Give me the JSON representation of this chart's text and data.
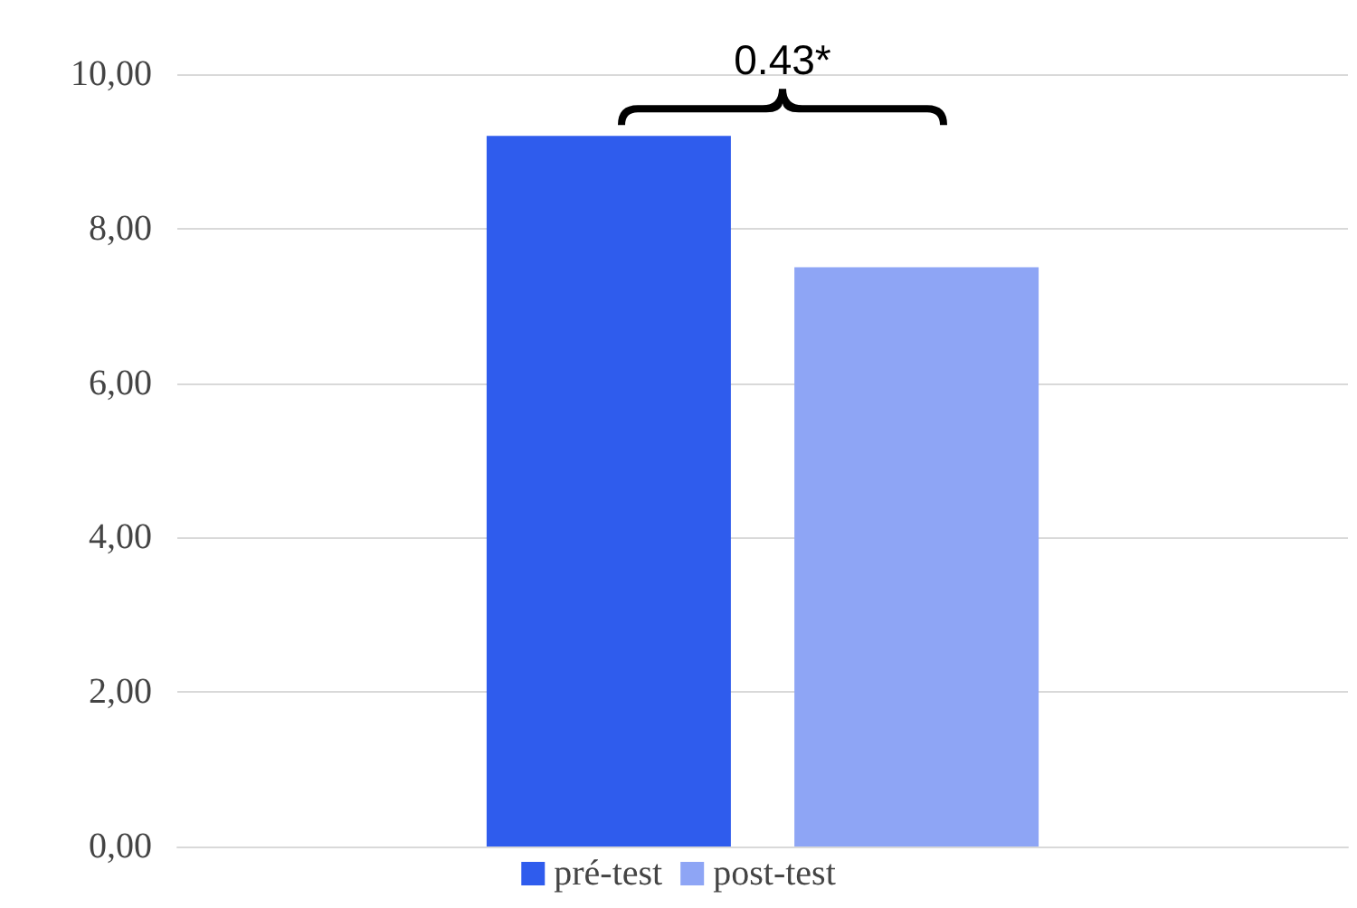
{
  "chart_data": {
    "type": "bar",
    "categories": [
      null
    ],
    "series": [
      {
        "name": "pré-test",
        "color": "#2f5ced",
        "values": [
          9.2
        ]
      },
      {
        "name": "post-test",
        "color": "#8ea5f5",
        "values": [
          7.5
        ]
      }
    ],
    "ylim": [
      0,
      10
    ],
    "yticks": [
      {
        "value": 0,
        "label": "0,00"
      },
      {
        "value": 2,
        "label": "2,00"
      },
      {
        "value": 4,
        "label": "4,00"
      },
      {
        "value": 6,
        "label": "6,00"
      },
      {
        "value": 8,
        "label": "8,00"
      },
      {
        "value": 10,
        "label": "10,00"
      }
    ],
    "grid": "y",
    "legend": "bottom",
    "annotations": [
      "0.43*"
    ]
  }
}
